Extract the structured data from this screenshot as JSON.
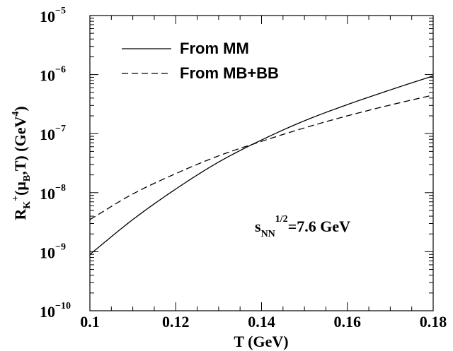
{
  "chart_data": {
    "type": "line",
    "xlabel": "T (GeV)",
    "ylabel": {
      "base": "R",
      "sub1": "K",
      "sup1": "+",
      "mid": "(μ",
      "sub2": "B",
      "rest": ",T) (GeV",
      "sup2": "4",
      "end": ")"
    },
    "xlim": [
      0.1,
      0.18
    ],
    "ylim_log10": [
      -10,
      -5
    ],
    "y_scale": "log",
    "grid": false,
    "legend_position": "top-left",
    "x_ticks": [
      {
        "value": 0.1,
        "label": "0.1"
      },
      {
        "value": 0.12,
        "label": "0.12"
      },
      {
        "value": 0.14,
        "label": "0.14"
      },
      {
        "value": 0.16,
        "label": "0.16"
      },
      {
        "value": 0.18,
        "label": "0.18"
      }
    ],
    "y_ticks": [
      {
        "exp": -5,
        "base": "10",
        "sup": "−5"
      },
      {
        "exp": -6,
        "base": "10",
        "sup": "−6"
      },
      {
        "exp": -7,
        "base": "10",
        "sup": "−7"
      },
      {
        "exp": -8,
        "base": "10",
        "sup": "−8"
      },
      {
        "exp": -9,
        "base": "10",
        "sup": "−9"
      },
      {
        "exp": -10,
        "base": "10",
        "sup": "−10"
      }
    ],
    "series": [
      {
        "name": "From MM",
        "style": "solid",
        "x": [
          0.1,
          0.11,
          0.12,
          0.13,
          0.14,
          0.15,
          0.16,
          0.17,
          0.18
        ],
        "y": [
          9e-10,
          3.5e-09,
          1.15e-08,
          3.3e-08,
          7.8e-08,
          1.65e-07,
          3.1e-07,
          5.5e-07,
          9.5e-07
        ]
      },
      {
        "name": "From MB+BB",
        "style": "dashed",
        "x": [
          0.1,
          0.11,
          0.12,
          0.13,
          0.14,
          0.15,
          0.16,
          0.17,
          0.18
        ],
        "y": [
          3.5e-09,
          9.5e-09,
          2.1e-08,
          4.2e-08,
          7.4e-08,
          1.25e-07,
          2e-07,
          3.05e-07,
          4.5e-07
        ]
      }
    ],
    "annotation": {
      "base": "s",
      "sub": "NN",
      "sup": "1/2",
      "rest": "=7.6 GeV"
    }
  }
}
